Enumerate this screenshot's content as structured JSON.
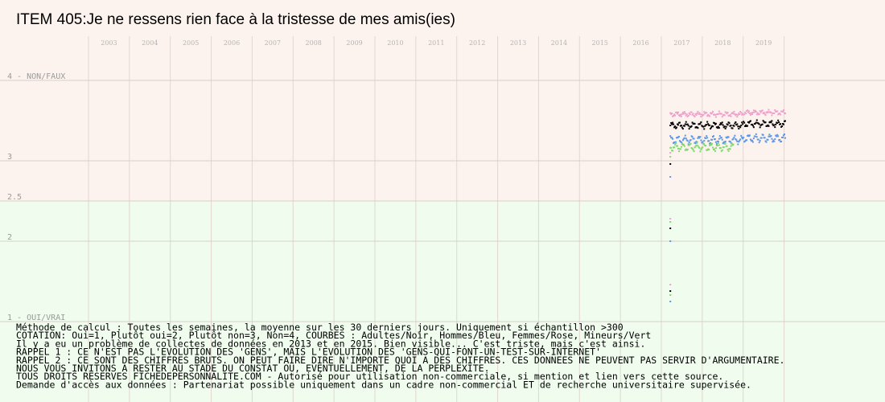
{
  "chart_data": {
    "type": "scatter",
    "title": "ITEM 405:Je ne ressens rien face à la tristesse de mes amis(ies)",
    "years": [
      "2003",
      "2004",
      "2005",
      "2006",
      "2007",
      "2008",
      "2009",
      "2010",
      "2011",
      "2012",
      "2013",
      "2014",
      "2015",
      "2016",
      "2017",
      "2018",
      "2019"
    ],
    "y_labels": [
      {
        "value": 4,
        "text": "4 - NON/FAUX"
      },
      {
        "value": 3,
        "text": "3"
      },
      {
        "value": 2.5,
        "text": "2.5"
      },
      {
        "value": 2,
        "text": "2"
      },
      {
        "value": 1,
        "text": "1 - OUI/VRAI"
      }
    ],
    "ylim": [
      1,
      4
    ],
    "xlim": [
      2002.5,
      2020
    ],
    "background_bands": [
      {
        "from": 2.5,
        "to": 4,
        "color": "#fdf3ee"
      },
      {
        "from": 1,
        "to": 2.5,
        "color": "#effcee"
      }
    ],
    "series": [
      {
        "name": "Adultes",
        "color": "#000000",
        "start": 2016.72,
        "end": 2019.52,
        "base": 3.44,
        "amp": 0.03,
        "early": [
          2.96,
          2.16,
          1.38
        ]
      },
      {
        "name": "Hommes",
        "color": "#5b97e8",
        "start": 2016.72,
        "end": 2019.52,
        "base": 3.26,
        "amp": 0.04,
        "early": [
          2.8,
          2.0,
          1.25
        ]
      },
      {
        "name": "Femmes",
        "color": "#f0a0cc",
        "start": 2016.72,
        "end": 2019.52,
        "base": 3.58,
        "amp": 0.02,
        "early": [
          3.1,
          2.28,
          1.46
        ]
      },
      {
        "name": "Mineurs",
        "color": "#80d870",
        "start": 2016.72,
        "end": 2018.25,
        "base": 3.17,
        "amp": 0.04,
        "early": [
          3.05,
          2.24,
          1.33
        ]
      }
    ],
    "notes": [
      "Méthode de calcul : Toutes les semaines, la moyenne sur les 30 derniers jours. Uniquement si échantillon >300",
      "COTATION: Oui=1, Plutôt oui=2, Plutôt non=3, Non=4, COURBES : Adultes/Noir, Hommes/Bleu, Femmes/Rose, Mineurs/Vert",
      "Il y a eu un problème de collectes de données en 2013 et en 2015. Bien visible... C'est triste, mais c'est ainsi.",
      "RAPPEL 1 : CE N'EST PAS L'EVOLUTION DES 'GENS', MAIS L'EVOLUTION DES 'GENS-QUI-FONT-UN-TEST-SUR-INTERNET'",
      "RAPPEL 2 : CE SONT DES CHIFFRES BRUTS. ON PEUT FAIRE DIRE N'IMPORTE QUOI A DES CHIFFRES. CES DONNEES NE PEUVENT PAS SERVIR D'ARGUMENTAIRE.",
      "           NOUS VOUS INVITONS A RESTER AU STADE DU CONSTAT OU, EVENTUELLEMENT,  DE LA PERPLEXITE.",
      "TOUS DROITS RESERVES FICHEDEPERSONNALITE.COM - Autorisé pour utilisation non-commerciale, si mention et lien vers cette source.",
      "Demande d'accès aux données : Partenariat possible uniquement dans un cadre non-commercial ET de recherche universitaire supervisée."
    ]
  }
}
